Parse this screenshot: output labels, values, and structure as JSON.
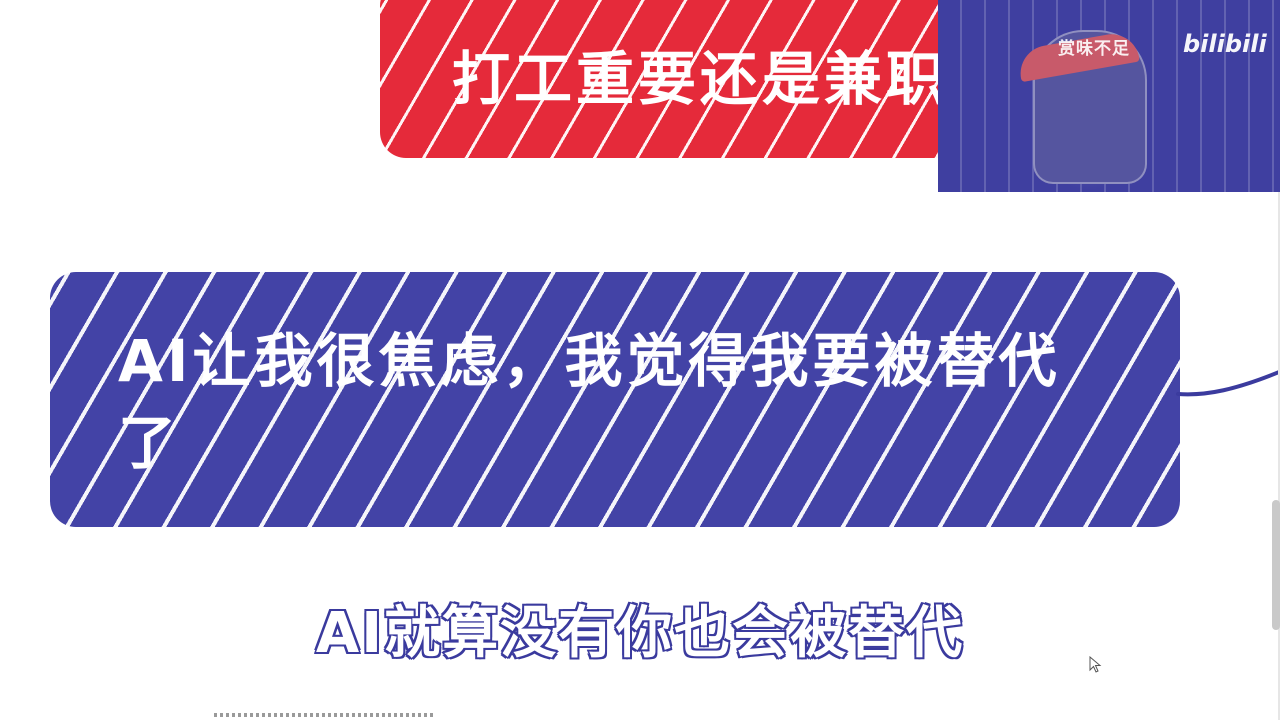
{
  "top_card": {
    "text": "打工重要还是兼职",
    "color": "#e52a3a"
  },
  "main_card": {
    "text": "AI让我很焦虑，我觉得我要被替代了",
    "color": "#4343a6"
  },
  "webcam": {
    "watermark": "赏味不足",
    "brand": "bilibili"
  },
  "subtitle": {
    "text": "AI就算没有你也会被替代"
  },
  "icons": {
    "cursor": "mouse-pointer-icon",
    "logo": "bilibili-logo"
  }
}
